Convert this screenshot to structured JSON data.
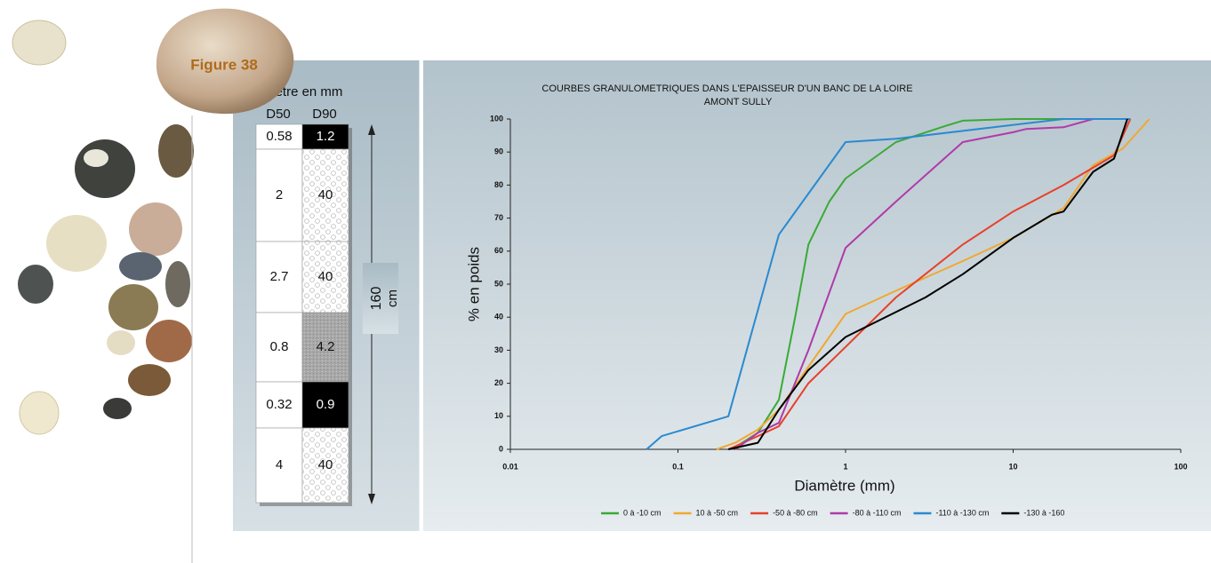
{
  "figure_label": "Figure 38",
  "column_table": {
    "header": "Diamètre en mm",
    "columns": [
      "D50",
      "D90"
    ],
    "rows": [
      [
        0.58,
        1.2
      ],
      [
        2,
        40
      ],
      [
        2.7,
        40
      ],
      [
        0.8,
        4.2
      ],
      [
        0.32,
        0.9
      ],
      [
        4,
        40
      ]
    ],
    "height_label": "160",
    "height_unit": "cm"
  },
  "chart_data": {
    "type": "line",
    "title": "COURBES GRANULOMETRIQUES DANS L'EPAISSEUR D'UN BANC DE LA LOIRE",
    "subtitle": "AMONT SULLY",
    "x_label": "Diamètre (mm)",
    "y_label": "% en poids",
    "x_log": true,
    "xlim": [
      0.01,
      100
    ],
    "xticks": [
      0.01,
      0.1,
      1,
      10,
      100
    ],
    "ylim": [
      0,
      100
    ],
    "yticks": [
      0,
      10,
      20,
      30,
      40,
      50,
      60,
      70,
      80,
      90,
      100
    ],
    "legend": "bottom",
    "series": [
      {
        "name": "0 à -10 cm",
        "color": "#3aaa35",
        "x": [
          0.21,
          0.3,
          0.4,
          0.5,
          0.6,
          0.8,
          1,
          2,
          4,
          5,
          10,
          45
        ],
        "values": [
          0,
          5,
          15,
          40,
          62,
          75,
          82,
          93,
          98,
          99.5,
          100,
          100
        ]
      },
      {
        "name": "10 à -50 cm",
        "color": "#f0a830",
        "x": [
          0.17,
          0.22,
          0.3,
          0.4,
          0.6,
          1,
          2,
          5,
          10,
          20,
          30,
          45,
          65
        ],
        "values": [
          0,
          2,
          6,
          12,
          25,
          41,
          48,
          57,
          64,
          73,
          86,
          91,
          100
        ]
      },
      {
        "name": "-50 à -80 cm",
        "color": "#e8402a",
        "x": [
          0.2,
          0.3,
          0.4,
          0.6,
          1,
          2,
          5,
          10,
          20,
          40,
          50
        ],
        "values": [
          0,
          4,
          7,
          20,
          31,
          46,
          62,
          72,
          80,
          89,
          100
        ]
      },
      {
        "name": "-80 à -110 cm",
        "color": "#b03aa8",
        "x": [
          0.22,
          0.3,
          0.4,
          0.6,
          1,
          2,
          5,
          10,
          12,
          20,
          30
        ],
        "values": [
          0,
          5,
          8,
          30,
          61,
          75,
          93,
          96,
          97,
          97.5,
          100
        ]
      },
      {
        "name": "-110 à -130 cm",
        "color": "#2a8ad0",
        "x": [
          0.065,
          0.08,
          0.2,
          0.4,
          1,
          2,
          20,
          50
        ],
        "values": [
          0,
          4,
          10,
          65,
          93,
          94,
          100,
          100
        ]
      },
      {
        "name": "-130 à -160",
        "color": "#000000",
        "x": [
          0.2,
          0.3,
          0.4,
          0.6,
          1,
          3,
          5,
          10,
          17,
          20,
          30,
          40,
          48
        ],
        "values": [
          0,
          2,
          12,
          24,
          34,
          46,
          53,
          64,
          71,
          72,
          84,
          88,
          100
        ]
      }
    ]
  }
}
